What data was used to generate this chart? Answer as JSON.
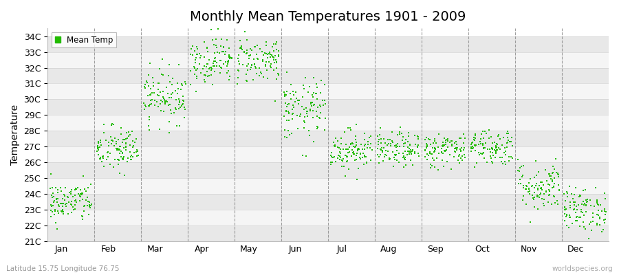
{
  "title": "Monthly Mean Temperatures 1901 - 2009",
  "ylabel": "Temperature",
  "xlabel_labels": [
    "Jan",
    "Feb",
    "Mar",
    "Apr",
    "May",
    "Jun",
    "Jul",
    "Aug",
    "Sep",
    "Oct",
    "Nov",
    "Dec"
  ],
  "subtitle": "Latitude 15.75 Longitude 76.75",
  "watermark": "worldspecies.org",
  "legend_label": "Mean Temp",
  "dot_color": "#22bb00",
  "bg_color": "#ffffff",
  "band_color_light": "#f5f5f5",
  "band_color_dark": "#e8e8e8",
  "ytick_labels": [
    "21C",
    "22C",
    "23C",
    "24C",
    "25C",
    "26C",
    "27C",
    "28C",
    "29C",
    "30C",
    "31C",
    "32C",
    "33C",
    "34C"
  ],
  "ytick_values": [
    21,
    22,
    23,
    24,
    25,
    26,
    27,
    28,
    29,
    30,
    31,
    32,
    33,
    34
  ],
  "ylim": [
    21,
    34.5
  ],
  "monthly_means": [
    23.5,
    26.8,
    30.2,
    32.5,
    32.5,
    29.3,
    26.8,
    26.8,
    26.8,
    27.0,
    24.5,
    23.0
  ],
  "monthly_stds": [
    0.65,
    0.75,
    0.85,
    0.75,
    0.75,
    1.0,
    0.65,
    0.55,
    0.55,
    0.6,
    0.8,
    0.7
  ],
  "n_years": 109,
  "title_fontsize": 14,
  "axis_fontsize": 10,
  "tick_fontsize": 9,
  "grid_color": "#888888",
  "grid_linestyle": "--",
  "grid_alpha": 0.8
}
